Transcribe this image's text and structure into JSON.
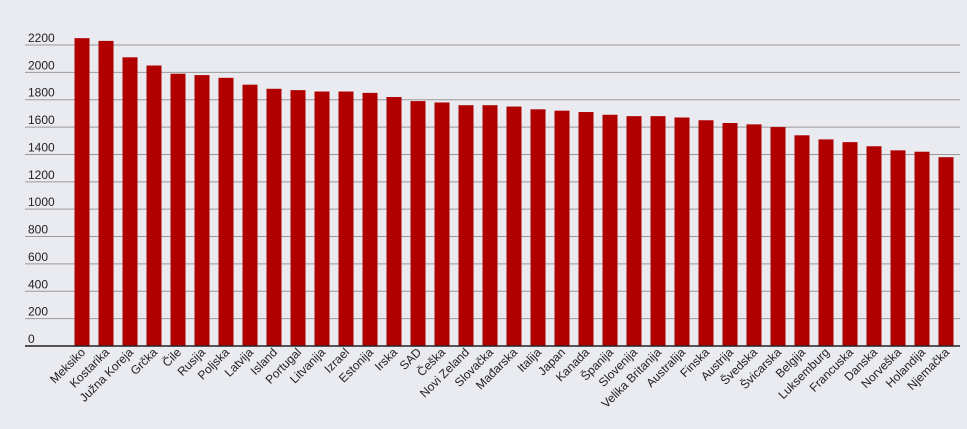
{
  "chart_data": {
    "type": "bar",
    "title": "",
    "xlabel": "",
    "ylabel": "",
    "ylim": [
      0,
      2200
    ],
    "yticks": [
      0,
      200,
      400,
      600,
      800,
      1000,
      1200,
      1400,
      1600,
      1800,
      2000,
      2200
    ],
    "grid": true,
    "legend": "none",
    "bar_color": "#b00000",
    "categories": [
      "Meksiko",
      "Kostarika",
      "Južna Koreja",
      "Grčka",
      "Čile",
      "Rusija",
      "Poljska",
      "Latvija",
      "Island",
      "Portugal",
      "Litvanija",
      "Izrael",
      "Estonija",
      "Irska",
      "SAD",
      "Češka",
      "Novi Zeland",
      "Slovačka",
      "Mađarska",
      "Italija",
      "Japan",
      "Kanada",
      "Španija",
      "Slovenija",
      "Velika Britanija",
      "Australija",
      "Finska",
      "Austrija",
      "Švedska",
      "Švicarska",
      "Belgija",
      "Luksemburg",
      "Francuska",
      "Danska",
      "Norveška",
      "Holandija",
      "Njemačka"
    ],
    "values": [
      2250,
      2230,
      2110,
      2050,
      1990,
      1980,
      1960,
      1910,
      1880,
      1870,
      1860,
      1860,
      1850,
      1820,
      1790,
      1780,
      1760,
      1760,
      1750,
      1730,
      1720,
      1710,
      1690,
      1680,
      1680,
      1670,
      1650,
      1630,
      1620,
      1600,
      1540,
      1510,
      1490,
      1460,
      1430,
      1420,
      1380
    ]
  }
}
